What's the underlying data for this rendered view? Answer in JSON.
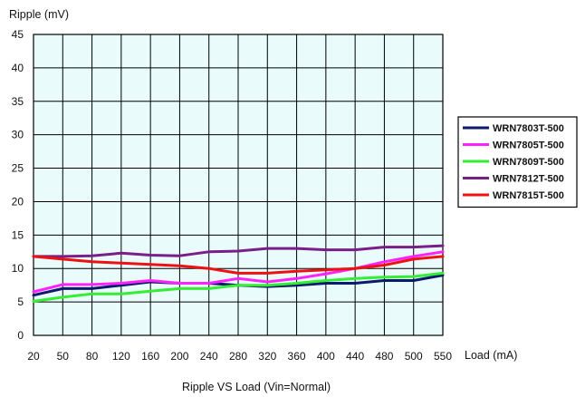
{
  "chart_data": {
    "type": "line",
    "title": "Ripple VS Load (Vin=Normal)",
    "xlabel": "Load (mA)",
    "ylabel": "Ripple (mV)",
    "ylim": [
      0,
      45
    ],
    "yticks": [
      "0",
      "5",
      "10",
      "15",
      "20",
      "25",
      "30",
      "35",
      "40",
      "45"
    ],
    "categories": [
      "20",
      "50",
      "80",
      "120",
      "160",
      "200",
      "240",
      "280",
      "320",
      "360",
      "400",
      "440",
      "480",
      "500",
      "550"
    ],
    "grid": true,
    "legend_position": "right",
    "plot_background": "#e9fbfb",
    "series": [
      {
        "name": "WRN7803T-500",
        "color": "#0a1a6e",
        "values": [
          6.0,
          7.0,
          7.0,
          7.5,
          8.0,
          7.8,
          7.8,
          7.5,
          7.3,
          7.5,
          7.8,
          7.8,
          8.2,
          8.2,
          9.0
        ]
      },
      {
        "name": "WRN7805T-500",
        "color": "#ff22ff",
        "values": [
          6.5,
          7.6,
          7.6,
          7.8,
          8.2,
          7.8,
          7.8,
          8.5,
          8.0,
          8.5,
          9.2,
          10.0,
          11.0,
          11.8,
          12.5
        ]
      },
      {
        "name": "WRN7809T-500",
        "color": "#33ee33",
        "values": [
          5.1,
          5.7,
          6.2,
          6.2,
          6.6,
          7.0,
          7.0,
          7.5,
          7.5,
          7.8,
          8.2,
          8.5,
          8.7,
          8.8,
          9.3
        ]
      },
      {
        "name": "WRN7812T-500",
        "color": "#7a1f8a",
        "values": [
          11.8,
          11.8,
          11.9,
          12.3,
          12.0,
          11.9,
          12.5,
          12.6,
          13.0,
          13.0,
          12.8,
          12.8,
          13.2,
          13.2,
          13.4
        ]
      },
      {
        "name": "WRN7815T-500",
        "color": "#ee1111",
        "values": [
          11.8,
          11.4,
          11.0,
          10.8,
          10.6,
          10.4,
          10.0,
          9.3,
          9.3,
          9.6,
          9.8,
          10.0,
          10.5,
          11.4,
          11.8
        ]
      }
    ]
  }
}
